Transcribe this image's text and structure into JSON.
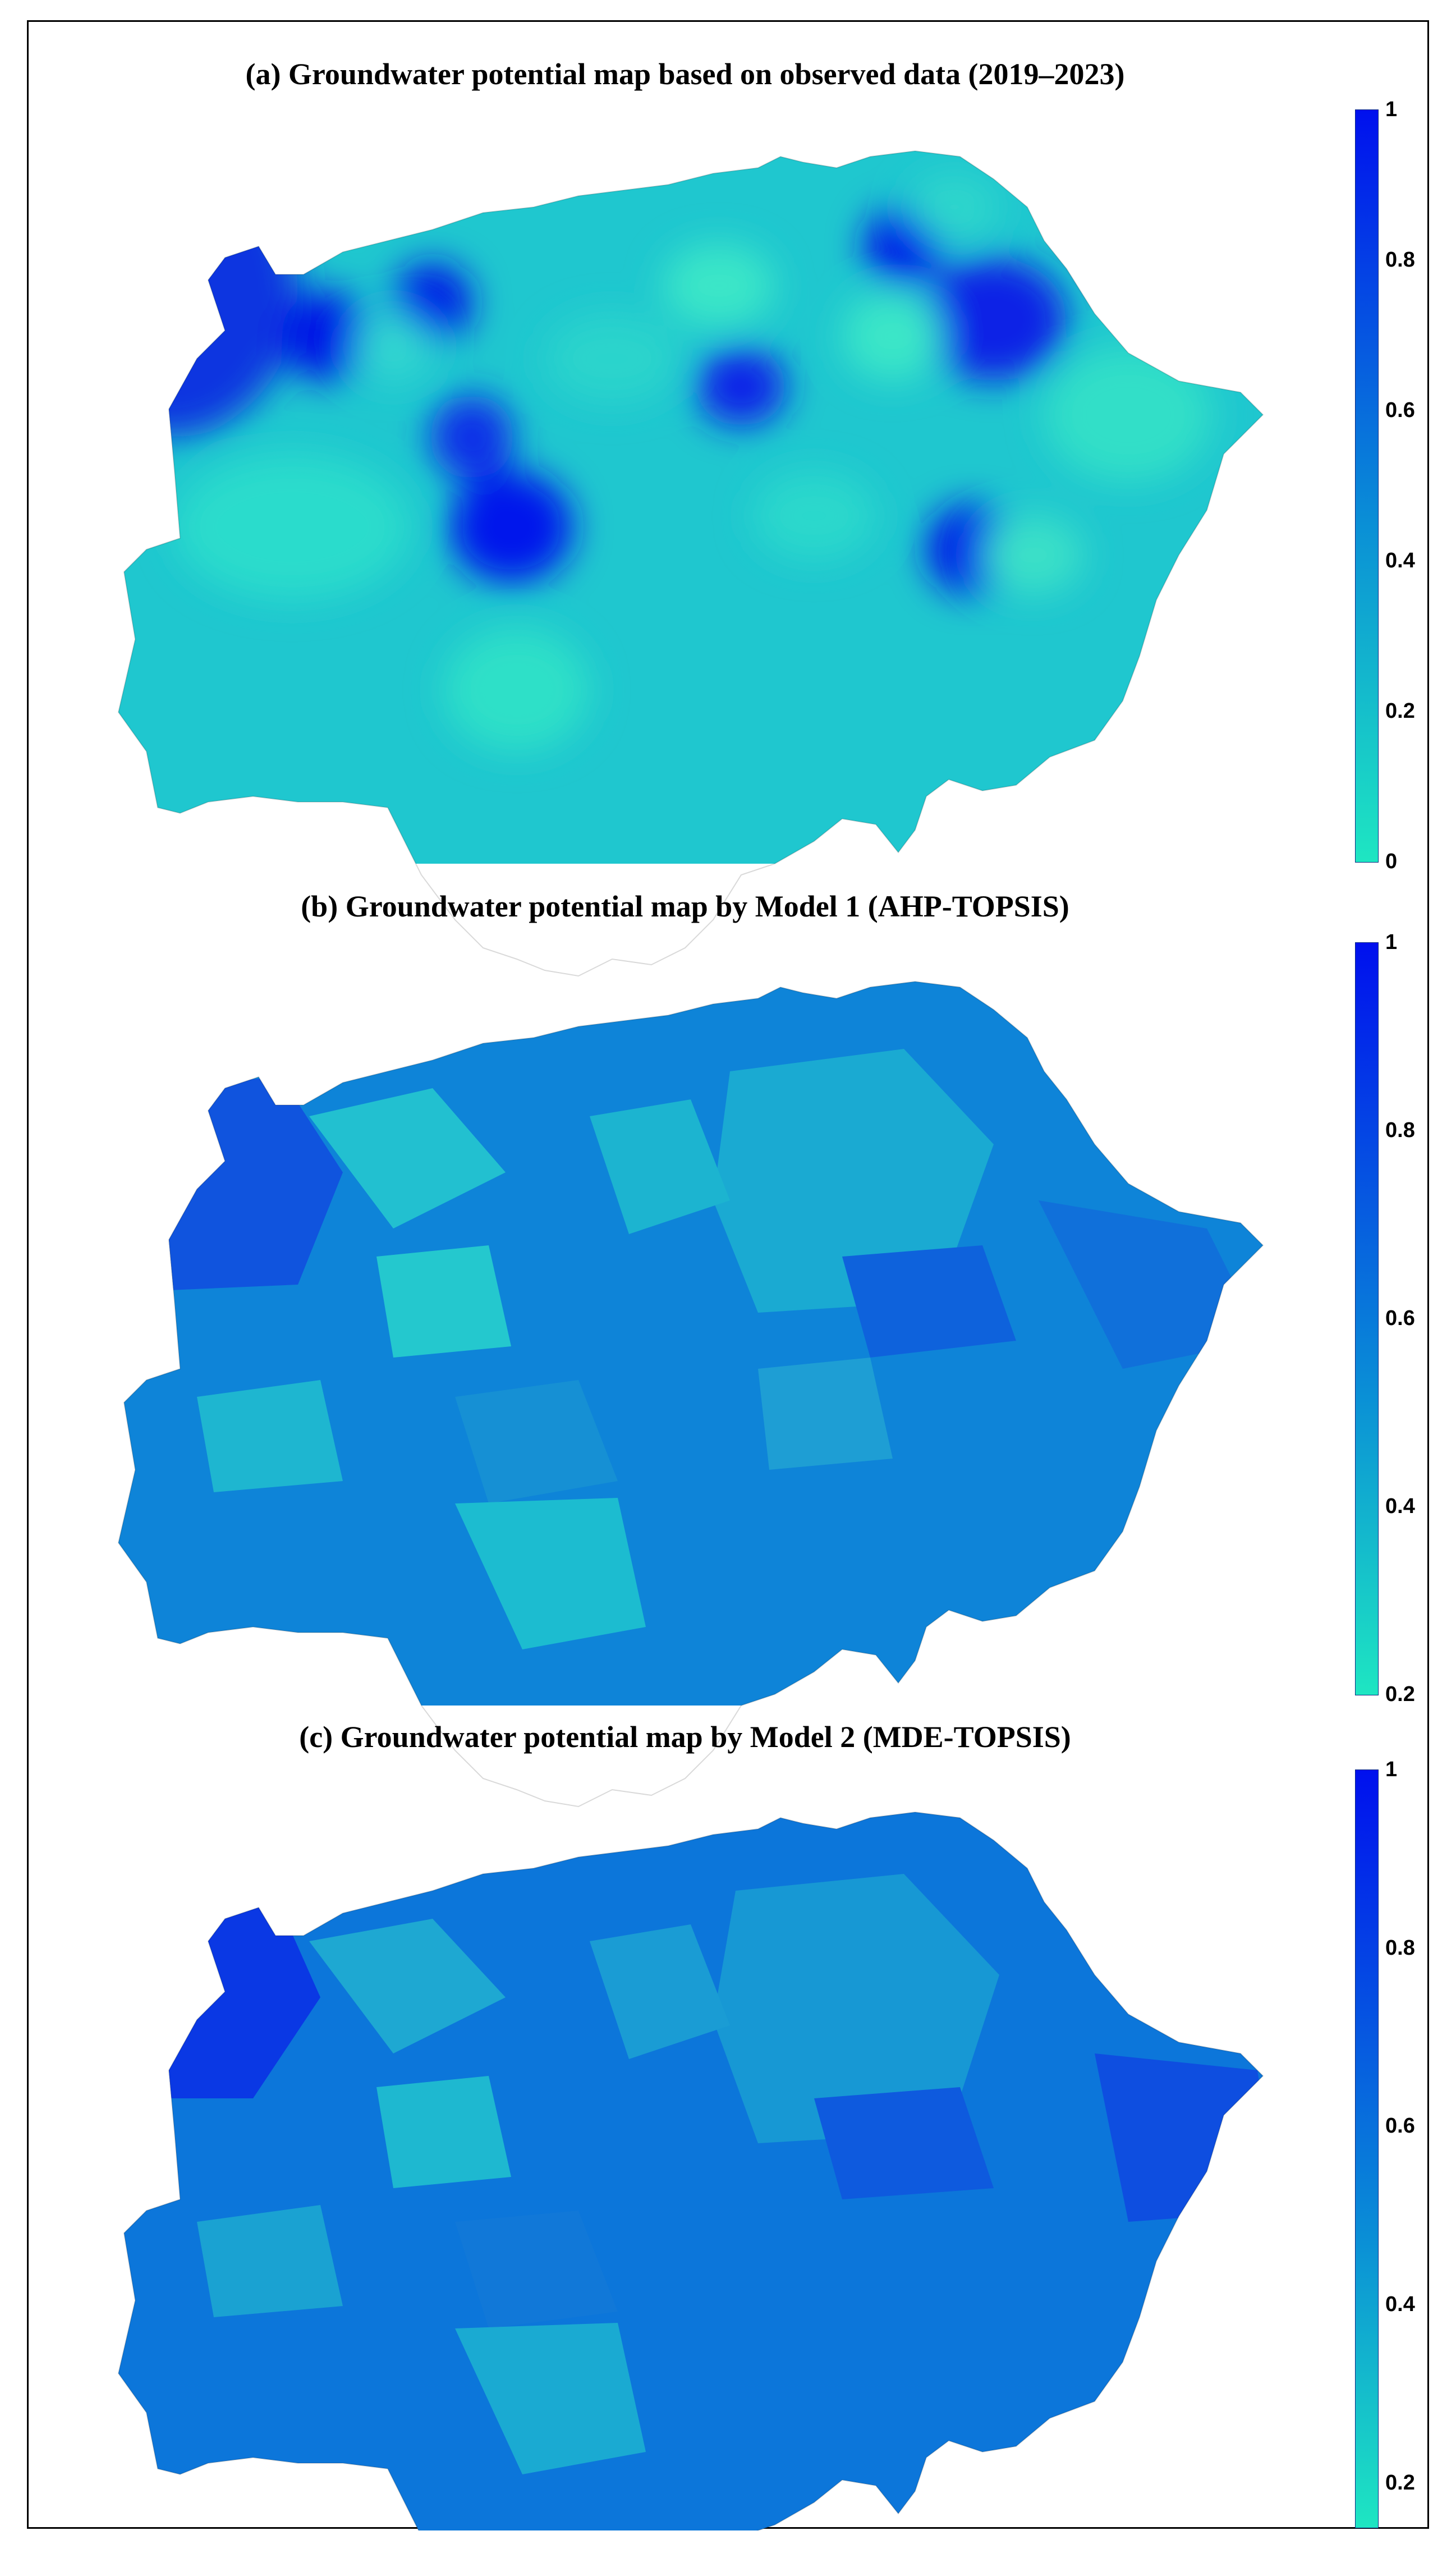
{
  "panels": [
    {
      "title": "(a) Groundwater potential map based on observed data (2019–2023)",
      "colorbar": {
        "min": 0,
        "max": 1,
        "ticks": [
          "1",
          "0.8",
          "0.6",
          "0.4",
          "0.2",
          "0"
        ]
      },
      "map_style": "interpolated smooth surface with local high/low spots"
    },
    {
      "title": "(b) Groundwater potential map by Model 1 (AHP-TOPSIS)",
      "colorbar": {
        "min": 0.2,
        "max": 1,
        "ticks": [
          "1",
          "0.8",
          "0.6",
          "0.4",
          "0.2"
        ]
      },
      "map_style": "patchy classified zones"
    },
    {
      "title": "(c) Groundwater potential map by Model 2 (MDE-TOPSIS)",
      "colorbar": {
        "min": 0.15,
        "max": 1,
        "ticks": [
          "1",
          "0.8",
          "0.6",
          "0.4",
          "0.2"
        ]
      },
      "map_style": "patchy classified zones"
    }
  ],
  "colors": {
    "low": "#1ee6c2",
    "mid": "#0a8fd6",
    "high": "#0010ee",
    "border": "#000000"
  }
}
